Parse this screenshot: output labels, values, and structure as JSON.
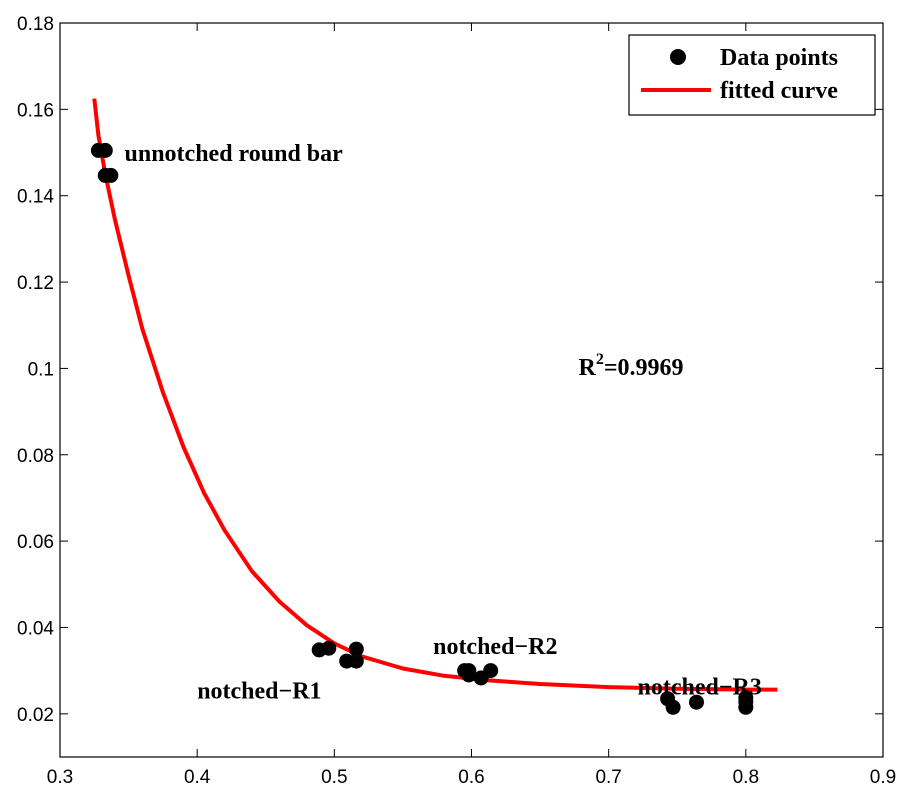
{
  "chart_data": {
    "type": "scatter",
    "xlim": [
      0.3,
      0.9
    ],
    "ylim": [
      0.01,
      0.18
    ],
    "x_ticks": [
      "0.3",
      "0.4",
      "0.5",
      "0.6",
      "0.7",
      "0.8",
      "0.9"
    ],
    "y_ticks": [
      "0.02",
      "0.04",
      "0.06",
      "0.08",
      "0.1",
      "0.12",
      "0.14",
      "0.16",
      "0.18"
    ],
    "x_tick_values": [
      0.3,
      0.4,
      0.5,
      0.6,
      0.7,
      0.8,
      0.9
    ],
    "y_tick_values": [
      0.02,
      0.04,
      0.06,
      0.08,
      0.1,
      0.12,
      0.14,
      0.16,
      0.18
    ],
    "grid": false,
    "legend_position": "top-right",
    "series": [
      {
        "name": "Data points",
        "kind": "scatter",
        "color": "#000000",
        "points": [
          [
            0.328,
            0.1505
          ],
          [
            0.333,
            0.1505
          ],
          [
            0.333,
            0.1447
          ],
          [
            0.337,
            0.1447
          ],
          [
            0.489,
            0.0348
          ],
          [
            0.496,
            0.0352
          ],
          [
            0.509,
            0.0322
          ],
          [
            0.516,
            0.0322
          ],
          [
            0.516,
            0.035
          ],
          [
            0.595,
            0.03
          ],
          [
            0.598,
            0.03
          ],
          [
            0.598,
            0.029
          ],
          [
            0.607,
            0.0283
          ],
          [
            0.614,
            0.03
          ],
          [
            0.743,
            0.0235
          ],
          [
            0.747,
            0.0215
          ],
          [
            0.764,
            0.0227
          ],
          [
            0.8,
            0.0215
          ],
          [
            0.8,
            0.0228
          ],
          [
            0.8,
            0.0237
          ]
        ]
      },
      {
        "name": "fitted curve",
        "kind": "line",
        "color": "#ff0000",
        "points": [
          [
            0.325,
            0.1625
          ],
          [
            0.328,
            0.154
          ],
          [
            0.333,
            0.145
          ],
          [
            0.34,
            0.1345
          ],
          [
            0.35,
            0.1215
          ],
          [
            0.36,
            0.1092
          ],
          [
            0.375,
            0.0945
          ],
          [
            0.39,
            0.0818
          ],
          [
            0.405,
            0.0712
          ],
          [
            0.42,
            0.0625
          ],
          [
            0.44,
            0.053
          ],
          [
            0.46,
            0.046
          ],
          [
            0.48,
            0.0405
          ],
          [
            0.5,
            0.0363
          ],
          [
            0.52,
            0.0333
          ],
          [
            0.55,
            0.0305
          ],
          [
            0.58,
            0.0288
          ],
          [
            0.61,
            0.0278
          ],
          [
            0.65,
            0.0269
          ],
          [
            0.7,
            0.0262
          ],
          [
            0.75,
            0.0258
          ],
          [
            0.8,
            0.0256
          ],
          [
            0.823,
            0.0256
          ]
        ]
      }
    ],
    "annotations": [
      {
        "text": "unnotched round bar",
        "x": 0.347,
        "y": 0.148
      },
      {
        "text": "notched−R1",
        "x": 0.4,
        "y": 0.0235,
        "anchor": "start"
      },
      {
        "text": "notched−R2",
        "x": 0.572,
        "y": 0.0338
      },
      {
        "text": "notched−R3",
        "x": 0.721,
        "y": 0.0245
      }
    ],
    "r2_label": {
      "prefix": "R",
      "superscript": "2",
      "value": "=0.9969",
      "x": 0.678,
      "y": 0.0985
    }
  }
}
